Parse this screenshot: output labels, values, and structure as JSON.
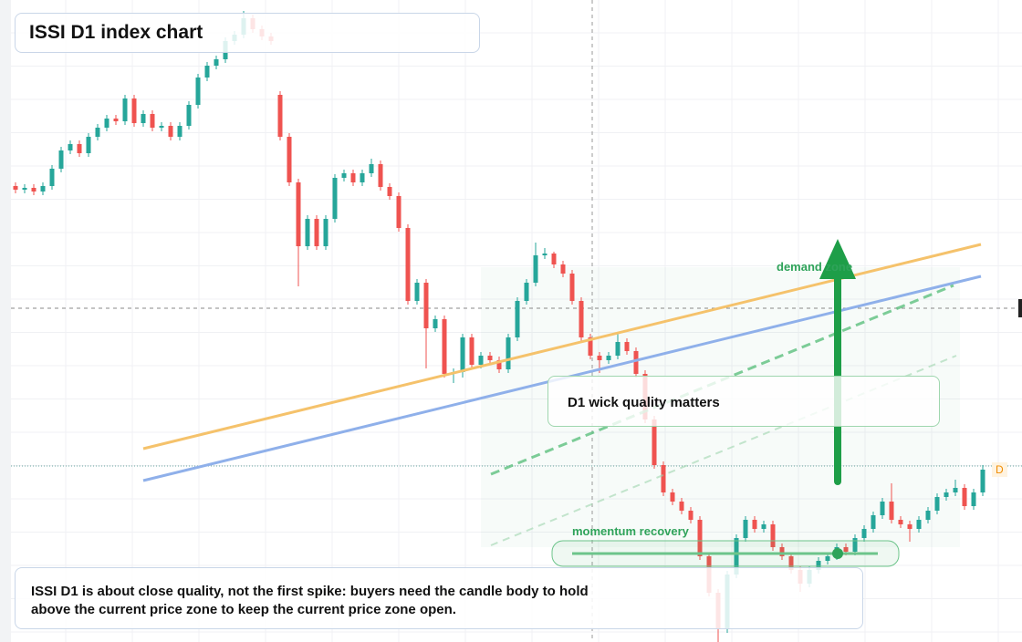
{
  "chart_data": {
    "type": "candlestick",
    "title": "ISSI D1 index chart",
    "annotations": [
      "demand zone",
      "D1 wick quality matters",
      "momentum recovery",
      "ISSI D1 is about close quality, not the first spike: buyers need the candle body to hold above the current price zone to keep the current price zone open.",
      "D"
    ],
    "up_color": "#26a69a",
    "down_color": "#ef5350",
    "grid": true,
    "ylim": [
      0,
      704
    ],
    "ohlc": [
      [
        500,
        504,
        492,
        496
      ],
      [
        496,
        502,
        492,
        498
      ],
      [
        498,
        502,
        490,
        494
      ],
      [
        494,
        504,
        490,
        500
      ],
      [
        500,
        523,
        496,
        519
      ],
      [
        519,
        543,
        515,
        539
      ],
      [
        539,
        550,
        535,
        546
      ],
      [
        546,
        550,
        532,
        536
      ],
      [
        536,
        558,
        532,
        554
      ],
      [
        554,
        568,
        550,
        564
      ],
      [
        564,
        578,
        560,
        574
      ],
      [
        574,
        578,
        567,
        571
      ],
      [
        571,
        600,
        567,
        596
      ],
      [
        596,
        600,
        565,
        569
      ],
      [
        569,
        583,
        565,
        579
      ],
      [
        579,
        583,
        560,
        564
      ],
      [
        564,
        570,
        560,
        566
      ],
      [
        566,
        570,
        550,
        554
      ],
      [
        554,
        570,
        550,
        566
      ],
      [
        566,
        593,
        562,
        589
      ],
      [
        589,
        623,
        585,
        619
      ],
      [
        619,
        636,
        615,
        632
      ],
      [
        632,
        643,
        628,
        639
      ],
      [
        639,
        663,
        635,
        659
      ],
      [
        659,
        670,
        655,
        666
      ],
      [
        666,
        692,
        662,
        684
      ],
      [
        684,
        688,
        668,
        672
      ],
      [
        672,
        676,
        660,
        664
      ],
      [
        664,
        668,
        655,
        659
      ],
      [
        600,
        604,
        550,
        554
      ],
      [
        554,
        558,
        500,
        504
      ],
      [
        504,
        508,
        390,
        434
      ],
      [
        434,
        468,
        430,
        464
      ],
      [
        464,
        468,
        430,
        434
      ],
      [
        434,
        468,
        430,
        464
      ],
      [
        464,
        513,
        460,
        509
      ],
      [
        509,
        518,
        505,
        514
      ],
      [
        514,
        518,
        500,
        504
      ],
      [
        504,
        518,
        500,
        514
      ],
      [
        514,
        530,
        510,
        524
      ],
      [
        524,
        528,
        495,
        499
      ],
      [
        499,
        503,
        485,
        489
      ],
      [
        489,
        493,
        450,
        454
      ],
      [
        454,
        458,
        370,
        374
      ],
      [
        374,
        398,
        370,
        394
      ],
      [
        394,
        398,
        300,
        344
      ],
      [
        344,
        358,
        340,
        354
      ],
      [
        354,
        358,
        290,
        294
      ],
      [
        294,
        300,
        284,
        296
      ],
      [
        296,
        338,
        290,
        334
      ],
      [
        334,
        338,
        300,
        304
      ],
      [
        304,
        318,
        300,
        314
      ],
      [
        314,
        318,
        305,
        309
      ],
      [
        309,
        313,
        295,
        299
      ],
      [
        299,
        338,
        295,
        334
      ],
      [
        334,
        378,
        330,
        374
      ],
      [
        374,
        398,
        370,
        394
      ],
      [
        394,
        438,
        390,
        424
      ],
      [
        424,
        432,
        420,
        426
      ],
      [
        426,
        428,
        410,
        414
      ],
      [
        414,
        418,
        400,
        404
      ],
      [
        404,
        408,
        370,
        374
      ],
      [
        374,
        378,
        330,
        334
      ],
      [
        334,
        338,
        310,
        314
      ],
      [
        314,
        318,
        295,
        309
      ],
      [
        309,
        318,
        305,
        314
      ],
      [
        314,
        340,
        310,
        329
      ],
      [
        329,
        333,
        315,
        319
      ],
      [
        319,
        323,
        290,
        294
      ],
      [
        294,
        298,
        240,
        244
      ],
      [
        244,
        248,
        190,
        194
      ],
      [
        194,
        198,
        160,
        164
      ],
      [
        164,
        168,
        150,
        154
      ],
      [
        154,
        158,
        140,
        144
      ],
      [
        144,
        148,
        130,
        134
      ],
      [
        134,
        138,
        90,
        94
      ],
      [
        94,
        98,
        50,
        54
      ],
      [
        54,
        58,
        0,
        14
      ],
      [
        14,
        78,
        10,
        74
      ],
      [
        74,
        118,
        70,
        114
      ],
      [
        114,
        138,
        110,
        134
      ],
      [
        134,
        138,
        120,
        124
      ],
      [
        124,
        133,
        120,
        129
      ],
      [
        129,
        133,
        100,
        104
      ],
      [
        104,
        108,
        90,
        94
      ],
      [
        94,
        98,
        75,
        79
      ],
      [
        79,
        83,
        55,
        64
      ],
      [
        64,
        83,
        60,
        79
      ],
      [
        79,
        93,
        75,
        89
      ],
      [
        89,
        98,
        85,
        94
      ],
      [
        94,
        108,
        90,
        104
      ],
      [
        104,
        108,
        95,
        99
      ],
      [
        99,
        118,
        95,
        114
      ],
      [
        114,
        128,
        110,
        124
      ],
      [
        124,
        143,
        120,
        139
      ],
      [
        139,
        158,
        135,
        154
      ],
      [
        154,
        174,
        130,
        134
      ],
      [
        134,
        138,
        125,
        129
      ],
      [
        129,
        133,
        110,
        124
      ],
      [
        124,
        138,
        120,
        134
      ],
      [
        134,
        148,
        130,
        144
      ],
      [
        144,
        163,
        140,
        159
      ],
      [
        159,
        168,
        155,
        164
      ],
      [
        164,
        178,
        160,
        169
      ],
      [
        169,
        173,
        145,
        149
      ],
      [
        149,
        168,
        145,
        164
      ],
      [
        164,
        194,
        160,
        189
      ]
    ]
  }
}
